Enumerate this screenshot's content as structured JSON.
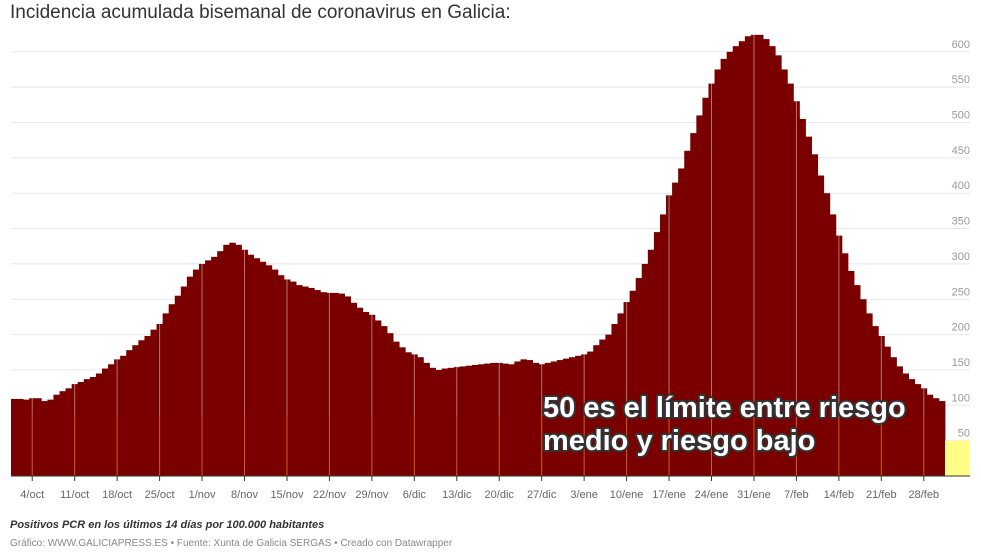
{
  "title": "Incidencia acumulada bisemanal de coronavirus en Galicia:",
  "note": "Positivos PCR en los últimos 14 días por 100.000 habitantes",
  "credit": "Gráfico: WWW.GALICIAPRESS.ES • Fuente: Xunta de Galicia SERGAS • Creado con Datawrapper",
  "chart_data": {
    "type": "bar",
    "title": "Incidencia acumulada bisemanal de coronavirus en Galicia:",
    "start_date": "1/oct",
    "end_date": "3/mar",
    "values": [
      109,
      109,
      108,
      110,
      110,
      106,
      108,
      115,
      120,
      124,
      130,
      133,
      137,
      140,
      145,
      152,
      158,
      165,
      170,
      178,
      185,
      192,
      198,
      207,
      215,
      230,
      243,
      255,
      268,
      282,
      292,
      300,
      305,
      310,
      318,
      327,
      330,
      327,
      320,
      313,
      308,
      303,
      298,
      292,
      284,
      278,
      275,
      270,
      268,
      266,
      263,
      260,
      259,
      259,
      258,
      254,
      245,
      238,
      232,
      228,
      220,
      212,
      202,
      190,
      182,
      175,
      172,
      168,
      160,
      153,
      150,
      152,
      153,
      154,
      155,
      156,
      157,
      158,
      159,
      160,
      160,
      159,
      158,
      162,
      165,
      164,
      160,
      158,
      160,
      162,
      164,
      166,
      168,
      170,
      172,
      176,
      185,
      193,
      200,
      215,
      230,
      246,
      262,
      280,
      300,
      320,
      345,
      370,
      397,
      415,
      435,
      460,
      485,
      510,
      535,
      555,
      575,
      590,
      600,
      608,
      615,
      622,
      624,
      624,
      618,
      608,
      595,
      575,
      555,
      530,
      505,
      480,
      455,
      425,
      400,
      370,
      340,
      315,
      290,
      270,
      250,
      230,
      212,
      198,
      183,
      168,
      155,
      145,
      137,
      130,
      124,
      115,
      110,
      106
    ],
    "x_tick_labels": [
      "4/oct",
      "11/oct",
      "18/oct",
      "25/oct",
      "1/nov",
      "8/nov",
      "15/nov",
      "22/nov",
      "29/nov",
      "6/dic",
      "13/dic",
      "20/dic",
      "27/dic",
      "3/ene",
      "10/ene",
      "17/ene",
      "24/ene",
      "31/ene",
      "7/feb",
      "14/feb",
      "21/feb",
      "28/feb"
    ],
    "y_ticks": [
      50,
      100,
      150,
      200,
      250,
      300,
      350,
      400,
      450,
      500,
      550,
      600
    ],
    "ylim": [
      0,
      630
    ],
    "grid": true,
    "bar_color": "#7a0000",
    "highlight_range": {
      "from": 0,
      "to": 50,
      "color": "#ffff88"
    },
    "annotation": [
      "50 es el límite entre riesgo",
      "medio y riesgo bajo"
    ]
  }
}
